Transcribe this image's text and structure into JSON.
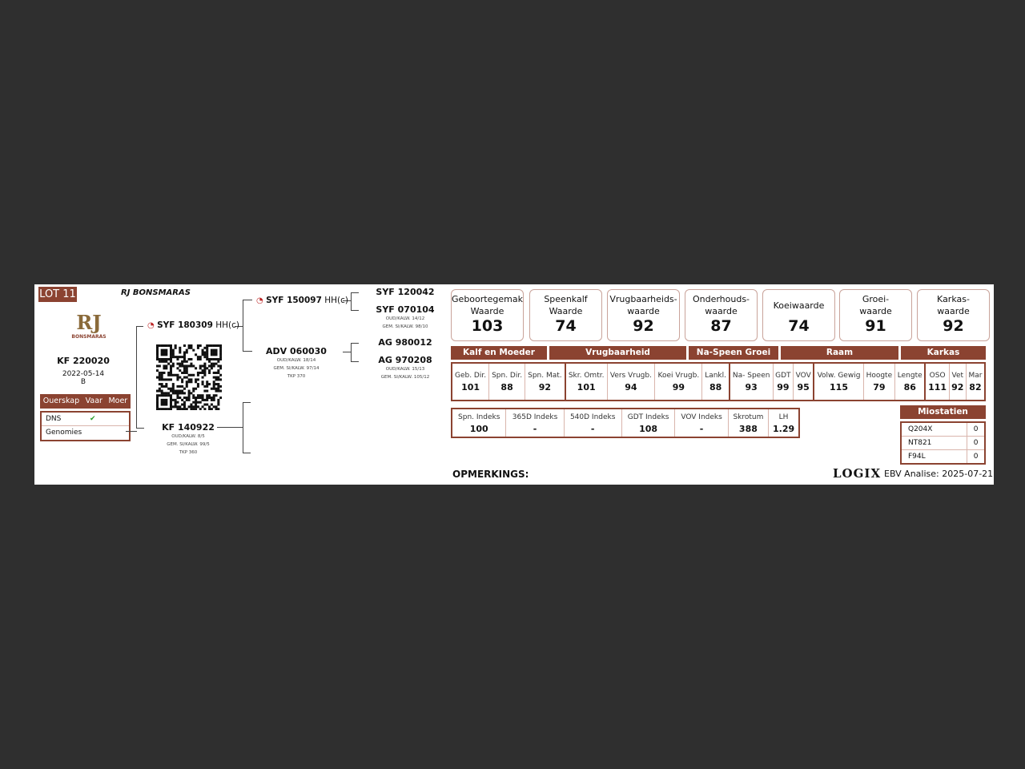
{
  "lot": "LOT 11",
  "farm": "RJ BONSMARAS",
  "logo": {
    "text": "RJ",
    "sub": "BONSMARAS"
  },
  "animal": {
    "id": "KF 220020",
    "date": "2022-05-14",
    "code": "B"
  },
  "parentage": {
    "headers": [
      "Ouerskap",
      "Vaar",
      "Moer"
    ],
    "rows": [
      {
        "label": "DNS",
        "vaar": "✔",
        "moer": ""
      },
      {
        "label": "Genomies",
        "vaar": "",
        "moer": ""
      }
    ]
  },
  "sire": {
    "id": "SYF 180309",
    "tag": "HH(c)"
  },
  "dam": {
    "id": "KF 140922",
    "l1": "OUD/KALW. 8/5",
    "l2": "GEM. SI/KALW. 99/5",
    "l3": "TKP 360"
  },
  "ss": {
    "id": "SYF 150097",
    "tag": "HH(c)"
  },
  "sd": {
    "id": "ADV 060030",
    "l1": "OUD/KALW. 18/14",
    "l2": "GEM. SI/KALW. 97/14",
    "l3": "TKP 370"
  },
  "sss": {
    "id": "SYF 120042"
  },
  "ssd": {
    "id": "SYF 070104",
    "l1": "OUD/KALW. 14/12",
    "l2": "GEM. SI/KALW. 98/10"
  },
  "sds": {
    "id": "AG 980012"
  },
  "sdd": {
    "id": "AG 970208",
    "l1": "OUD/KALW. 15/13",
    "l2": "GEM. SI/KALW. 105/12"
  },
  "ebv": [
    {
      "l1": "Geboortegemak",
      "l2": "Waarde",
      "v": "103"
    },
    {
      "l1": "Speenkalf",
      "l2": "Waarde",
      "v": "74"
    },
    {
      "l1": "Vrugbaarheids-",
      "l2": "waarde",
      "v": "92"
    },
    {
      "l1": "Onderhouds-",
      "l2": "waarde",
      "v": "87"
    },
    {
      "l1": "Koeiwaarde",
      "l2": "",
      "v": "74"
    },
    {
      "l1": "Groei-",
      "l2": "waarde",
      "v": "91"
    },
    {
      "l1": "Karkas-",
      "l2": "waarde",
      "v": "92"
    }
  ],
  "sections": [
    "Kalf en Moeder",
    "Vrugbaarheid",
    "Na-Speen Groei",
    "Raam",
    "Karkas"
  ],
  "traits": [
    {
      "l": "Geb. Dir.",
      "v": "101"
    },
    {
      "l": "Spn. Dir.",
      "v": "88"
    },
    {
      "l": "Spn. Mat.",
      "v": "92"
    },
    {
      "l": "Skr. Omtr.",
      "v": "101"
    },
    {
      "l": "Vers Vrugb.",
      "v": "94"
    },
    {
      "l": "Koei Vrugb.",
      "v": "99"
    },
    {
      "l": "Lankl.",
      "v": "88"
    },
    {
      "l": "Na- Speen",
      "v": "93"
    },
    {
      "l": "GDT",
      "v": "99"
    },
    {
      "l": "VOV",
      "v": "95"
    },
    {
      "l": "Volw. Gewig",
      "v": "115"
    },
    {
      "l": "Hoogte",
      "v": "79"
    },
    {
      "l": "Lengte",
      "v": "86"
    },
    {
      "l": "OSO",
      "v": "111"
    },
    {
      "l": "Vet",
      "v": "92"
    },
    {
      "l": "Mar",
      "v": "82"
    }
  ],
  "indexes": [
    {
      "l": "Spn. Indeks",
      "v": "100"
    },
    {
      "l": "365D Indeks",
      "v": "-"
    },
    {
      "l": "540D Indeks",
      "v": "-"
    },
    {
      "l": "GDT Indeks",
      "v": "108"
    },
    {
      "l": "VOV Indeks",
      "v": "-"
    },
    {
      "l": "Skrotum",
      "v": "388"
    },
    {
      "l": "LH",
      "v": "1.29"
    }
  ],
  "miostatien": {
    "title": "Miostatien",
    "rows": [
      {
        "k": "Q204X",
        "v": "0"
      },
      {
        "k": "NT821",
        "v": "0"
      },
      {
        "k": "F94L",
        "v": "0"
      }
    ]
  },
  "remarks": "OPMERKINGS:",
  "brand": "LOGIX",
  "analysis": "EBV Analise: 2025-07-21",
  "colors": {
    "accent": "#8b4331",
    "background": "#2f2f2f",
    "check": "#2a9d2a",
    "ct_icon": "#cc2222"
  }
}
